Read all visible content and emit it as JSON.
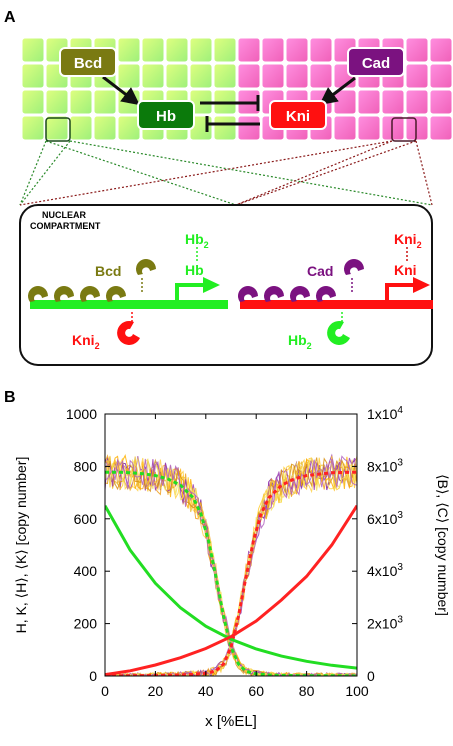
{
  "panel_a": {
    "label": "A",
    "genes": {
      "bcd": "Bcd",
      "cad": "Cad",
      "hb": "Hb",
      "kni": "Kni"
    },
    "nuclear_compartment": [
      "NUCLEAR",
      "COMPARTMENT"
    ],
    "left": {
      "dimer": "Hb",
      "dimer_sub": "2",
      "monomer": "Hb",
      "activator": "Bcd",
      "repressor": "Kni",
      "repressor_sub": "2"
    },
    "right": {
      "dimer": "Kni",
      "dimer_sub": "2",
      "monomer": "Kni",
      "activator": "Cad",
      "repressor": "Hb",
      "repressor_sub": "2"
    },
    "colors": {
      "bcd": "#7a7a12",
      "cad": "#7b1280",
      "hb": "#0b7a0b",
      "kni": "#ff0000",
      "green": "#22ee22"
    }
  },
  "panel_b": {
    "label": "B",
    "xlabel": "x [%EL]",
    "ylabel_left": "H, K, ⟨H⟩, ⟨K⟩ [copy number]",
    "ylabel_right": "⟨B⟩, ⟨C⟩ [copy number]",
    "x_ticks": [
      "0",
      "20",
      "40",
      "60",
      "80",
      "100"
    ],
    "y_ticks_left": [
      "0",
      "200",
      "400",
      "600",
      "800",
      "1000"
    ],
    "y_ticks_right": [
      {
        "base": "0",
        "exp": ""
      },
      {
        "base": "2x10",
        "exp": "3"
      },
      {
        "base": "4x10",
        "exp": "3"
      },
      {
        "base": "6x10",
        "exp": "3"
      },
      {
        "base": "8x10",
        "exp": "3"
      },
      {
        "base": "1x10",
        "exp": "4"
      }
    ]
  },
  "chart_data": {
    "type": "line",
    "xlim": [
      0,
      100
    ],
    "ylim_left": [
      0,
      1000
    ],
    "ylim_right": [
      0,
      10000
    ],
    "grid": false,
    "series": [
      {
        "kind": "mean",
        "color": "#22dd22",
        "x": [
          0,
          5,
          10,
          15,
          20,
          25,
          30,
          35,
          38,
          41,
          44,
          47,
          50,
          53,
          56,
          60,
          65,
          70,
          80,
          90,
          100
        ],
        "y": [
          778,
          778,
          776,
          772,
          765,
          752,
          728,
          680,
          620,
          520,
          380,
          230,
          110,
          45,
          18,
          8,
          4,
          2,
          1,
          1,
          0
        ]
      },
      {
        "kind": "mean",
        "color": "#ff2222",
        "x": [
          0,
          10,
          20,
          30,
          40,
          44,
          47,
          50,
          53,
          56,
          59,
          62,
          65,
          70,
          75,
          80,
          90,
          100
        ],
        "y": [
          0,
          1,
          2,
          4,
          10,
          20,
          45,
          110,
          230,
          380,
          520,
          620,
          680,
          728,
          752,
          765,
          776,
          778
        ]
      },
      {
        "kind": "gradient",
        "axis": "right",
        "color": "#22dd22",
        "x": [
          0,
          10,
          20,
          30,
          40,
          50,
          60,
          70,
          80,
          90,
          100
        ],
        "y": [
          6500,
          4800,
          3540,
          2600,
          1900,
          1400,
          1030,
          760,
          560,
          410,
          300
        ]
      },
      {
        "kind": "gradient",
        "axis": "right",
        "color": "#ff2222",
        "x": [
          0,
          10,
          20,
          30,
          40,
          50,
          60,
          70,
          80,
          90,
          100
        ],
        "y": [
          50,
          200,
          420,
          700,
          1050,
          1500,
          2100,
          2900,
          3800,
          5000,
          6500
        ]
      }
    ]
  }
}
